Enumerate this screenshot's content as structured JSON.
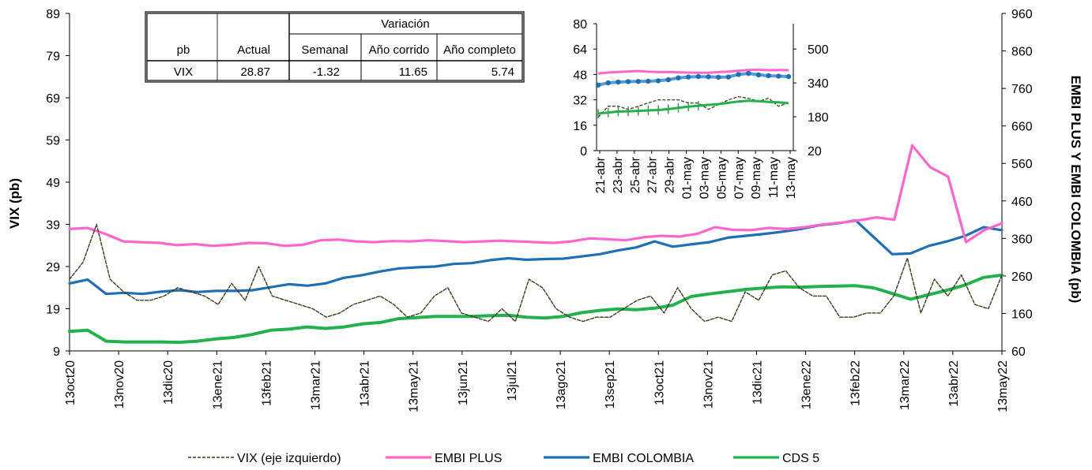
{
  "chart_data": [
    {
      "type": "line",
      "left_axis": {
        "title": "VIX  (pb)",
        "ylim": [
          9,
          89
        ],
        "ticks": [
          9,
          19,
          29,
          39,
          49,
          59,
          69,
          79,
          89
        ]
      },
      "right_axis": {
        "title": "EMBI PLUS Y EMBI COLOMBIA  (pb)",
        "ylim": [
          60,
          960
        ],
        "ticks": [
          60,
          160,
          260,
          360,
          460,
          560,
          660,
          760,
          860,
          960
        ]
      },
      "x_labels": [
        "13oct20",
        "13nov20",
        "13dic20",
        "13ene21",
        "13feb21",
        "13mar21",
        "13abr21",
        "13may21",
        "13jun21",
        "13jul21",
        "13ago21",
        "13sep21",
        "13oct21",
        "13nov21",
        "13dic21",
        "13ene22",
        "13feb22",
        "13mar22",
        "13abr22",
        "13may22"
      ],
      "series": [
        {
          "name": "VIX (eje izquierdo)",
          "axis": "left",
          "color": "#3d3a1a",
          "style": "dashed",
          "values": [
            26,
            30,
            39,
            26,
            23,
            21,
            21,
            22,
            24,
            23,
            22,
            20,
            25,
            21,
            29,
            22,
            21,
            20,
            19,
            17,
            18,
            20,
            21,
            22,
            20,
            17,
            18,
            22,
            24,
            18,
            17,
            16,
            19,
            16,
            26,
            24,
            19,
            17,
            16,
            17,
            17,
            19,
            21,
            22,
            18,
            24,
            19,
            16,
            17,
            16,
            23,
            21,
            27,
            28,
            24,
            22,
            22,
            17,
            17,
            18,
            18,
            22,
            31,
            18,
            26,
            22,
            27,
            20,
            19,
            27
          ]
        },
        {
          "name": "EMBI PLUS",
          "axis": "right",
          "color": "#ff66cc",
          "style": "solid",
          "values": [
            385,
            388,
            372,
            352,
            350,
            348,
            342,
            345,
            340,
            343,
            348,
            347,
            340,
            343,
            355,
            357,
            352,
            350,
            353,
            352,
            355,
            353,
            350,
            352,
            354,
            352,
            350,
            348,
            352,
            360,
            358,
            355,
            363,
            367,
            365,
            372,
            390,
            383,
            382,
            388,
            385,
            390,
            397,
            402,
            408,
            416,
            410,
            608,
            550,
            525,
            350,
            382,
            400
          ]
        },
        {
          "name": "EMBI COLOMBIA",
          "axis": "right",
          "color": "#1f6fb5",
          "style": "solid",
          "values": [
            240,
            250,
            212,
            215,
            212,
            218,
            222,
            217,
            220,
            220,
            222,
            230,
            238,
            234,
            240,
            255,
            262,
            272,
            280,
            283,
            285,
            292,
            294,
            302,
            307,
            303,
            305,
            306,
            312,
            318,
            328,
            336,
            352,
            338,
            344,
            350,
            362,
            367,
            372,
            378,
            385,
            395,
            400,
            408,
            363,
            318,
            320,
            340,
            352,
            367,
            390,
            382
          ]
        },
        {
          "name": "CDS 5",
          "axis": "right",
          "color": "#22b14c",
          "style": "solid",
          "values": [
            112,
            115,
            86,
            84,
            84,
            84,
            83,
            86,
            92,
            96,
            104,
            115,
            118,
            124,
            120,
            124,
            132,
            136,
            146,
            149,
            152,
            152,
            152,
            154,
            155,
            150,
            148,
            152,
            162,
            168,
            172,
            170,
            174,
            182,
            205,
            212,
            218,
            224,
            228,
            231,
            230,
            232,
            233,
            234,
            228,
            213,
            198,
            210,
            222,
            236,
            256,
            262
          ]
        }
      ]
    },
    {
      "type": "line",
      "left_axis": {
        "ylim": [
          0,
          80
        ],
        "ticks": [
          0,
          16,
          32,
          48,
          64,
          80
        ]
      },
      "right_axis": {
        "ylim": [
          20,
          620
        ],
        "ticks": [
          20,
          180,
          340,
          500
        ]
      },
      "x_labels": [
        "21-abr",
        "23-abr",
        "25-abr",
        "27-abr",
        "29-abr",
        "01-may",
        "03-may",
        "05-may",
        "07-may",
        "09-may",
        "11-may",
        "13-may"
      ],
      "series": [
        {
          "name": "VIX",
          "color": "#3d3a1a",
          "style": "dashed",
          "values": [
            21,
            28,
            28,
            26,
            28,
            30,
            32,
            32,
            32,
            30,
            30,
            26,
            29,
            32,
            34,
            33,
            31,
            33,
            28,
            30
          ]
        },
        {
          "name": "EMBI PLUS",
          "color": "#ff66cc",
          "style": "solid",
          "values": [
            384,
            389,
            392,
            394,
            396,
            393,
            391,
            392,
            390,
            389,
            388,
            388,
            391,
            393,
            398,
            401,
            402,
            400,
            401,
            400
          ]
        },
        {
          "name": "EMBI COLOMBIA",
          "color": "#1f6fb5",
          "style": "solid",
          "values": [
            330,
            340,
            344,
            346,
            347,
            348,
            350,
            355,
            364,
            368,
            370,
            369,
            367,
            368,
            380,
            385,
            378,
            374,
            372,
            370
          ]
        },
        {
          "name": "CDS 5",
          "color": "#22b14c",
          "style": "solid",
          "values": [
            195,
            200,
            205,
            206,
            208,
            210,
            212,
            216,
            222,
            228,
            232,
            236,
            240,
            246,
            252,
            256,
            254,
            250,
            248,
            244
          ]
        }
      ]
    }
  ],
  "table": {
    "group_header": "Variación",
    "headers": [
      "pb",
      "Actual",
      "Semanal",
      "Año corrido",
      "Año completo"
    ],
    "row": [
      "VIX",
      "28.87",
      "-1.32",
      "11.65",
      "5.74"
    ]
  },
  "legend": [
    {
      "label": "VIX (eje izquierdo)",
      "color": "#3d3a1a",
      "style": "dashed"
    },
    {
      "label": "EMBI PLUS",
      "color": "#ff66cc",
      "style": "solid"
    },
    {
      "label": "EMBI COLOMBIA",
      "color": "#1f6fb5",
      "style": "solid"
    },
    {
      "label": "CDS 5",
      "color": "#22b14c",
      "style": "solid"
    }
  ]
}
